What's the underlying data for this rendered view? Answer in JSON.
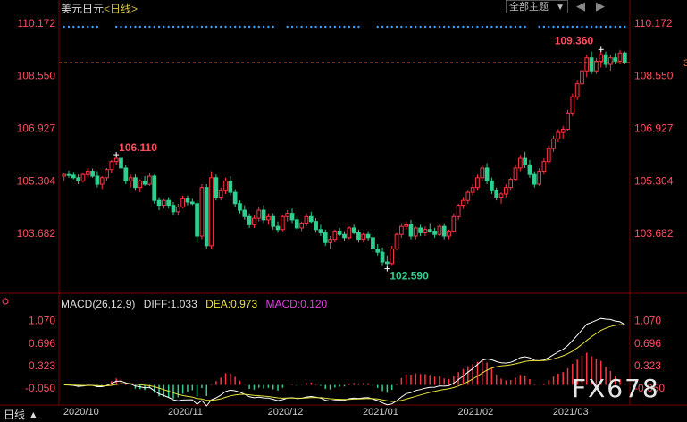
{
  "window": {
    "title": "美元日元",
    "period_label": "<日线>",
    "theme_select": "全部主题",
    "watermark": "FX678",
    "period_button": "日线 ▲"
  },
  "colors": {
    "background": "#000000",
    "up": "#ff3344",
    "down": "#2fcf8f",
    "axis_text": "#ff4d5e",
    "grid": "#7a0000",
    "diff_line": "#ffffff",
    "dea_line": "#e8e23c",
    "dots": "#3aa0ff",
    "last_price_line": "#ff7a45"
  },
  "main_chart": {
    "y_axis_labels": [
      "110.172",
      "108.550",
      "106.927",
      "105.304",
      "103.682"
    ],
    "y_range": [
      102.0,
      110.5
    ],
    "high_annotation": "106.110",
    "low_annotation": "102.590",
    "recent_high_annotation": "109.360",
    "last_price_marker": "3",
    "candles": [
      [
        105.45,
        105.55,
        105.3,
        105.5
      ],
      [
        105.5,
        105.62,
        105.4,
        105.48
      ],
      [
        105.48,
        105.58,
        105.35,
        105.4
      ],
      [
        105.4,
        105.5,
        105.2,
        105.3
      ],
      [
        105.3,
        105.55,
        105.25,
        105.5
      ],
      [
        105.5,
        105.7,
        105.4,
        105.6
      ],
      [
        105.6,
        105.68,
        105.4,
        105.45
      ],
      [
        105.45,
        105.6,
        105.1,
        105.2
      ],
      [
        105.2,
        105.45,
        105.05,
        105.4
      ],
      [
        105.4,
        105.7,
        105.3,
        105.65
      ],
      [
        105.65,
        105.95,
        105.55,
        105.9
      ],
      [
        105.9,
        106.11,
        105.8,
        106.0
      ],
      [
        106.0,
        106.05,
        105.6,
        105.7
      ],
      [
        105.7,
        105.8,
        105.2,
        105.3
      ],
      [
        105.3,
        105.5,
        105.1,
        105.4
      ],
      [
        105.4,
        105.5,
        105.0,
        105.1
      ],
      [
        105.1,
        105.35,
        104.95,
        105.3
      ],
      [
        105.3,
        105.45,
        105.15,
        105.2
      ],
      [
        105.2,
        105.55,
        105.15,
        105.45
      ],
      [
        105.45,
        105.5,
        104.6,
        104.7
      ],
      [
        104.7,
        104.8,
        104.4,
        104.55
      ],
      [
        104.55,
        104.75,
        104.45,
        104.7
      ],
      [
        104.7,
        104.8,
        104.45,
        104.55
      ],
      [
        104.55,
        104.65,
        104.25,
        104.35
      ],
      [
        104.35,
        104.6,
        104.25,
        104.5
      ],
      [
        104.5,
        104.85,
        104.45,
        104.75
      ],
      [
        104.75,
        104.85,
        104.55,
        104.65
      ],
      [
        104.65,
        104.75,
        104.55,
        104.6
      ],
      [
        104.6,
        104.7,
        103.4,
        103.6
      ],
      [
        103.6,
        105.2,
        103.5,
        105.1
      ],
      [
        105.1,
        105.2,
        103.2,
        103.3
      ],
      [
        103.3,
        105.6,
        103.2,
        105.4
      ],
      [
        105.4,
        105.5,
        104.7,
        104.8
      ],
      [
        104.8,
        105.1,
        104.7,
        105.0
      ],
      [
        105.0,
        105.4,
        104.9,
        105.3
      ],
      [
        105.3,
        105.45,
        104.85,
        104.95
      ],
      [
        104.95,
        105.05,
        104.5,
        104.6
      ],
      [
        104.6,
        104.7,
        104.3,
        104.4
      ],
      [
        104.4,
        104.55,
        104.1,
        104.2
      ],
      [
        104.2,
        104.3,
        103.85,
        103.95
      ],
      [
        103.95,
        104.25,
        103.85,
        104.15
      ],
      [
        104.15,
        104.5,
        104.05,
        104.4
      ],
      [
        104.4,
        104.55,
        104.0,
        104.1
      ],
      [
        104.1,
        104.3,
        103.95,
        104.2
      ],
      [
        104.2,
        104.3,
        103.8,
        103.9
      ],
      [
        103.9,
        104.05,
        103.7,
        103.8
      ],
      [
        103.8,
        104.25,
        103.75,
        104.2
      ],
      [
        104.2,
        104.4,
        104.05,
        104.3
      ],
      [
        104.3,
        104.45,
        104.0,
        104.1
      ],
      [
        104.1,
        104.2,
        103.8,
        103.85
      ],
      [
        103.85,
        104.05,
        103.75,
        104.0
      ],
      [
        104.0,
        104.3,
        103.9,
        104.2
      ],
      [
        104.2,
        104.35,
        104.0,
        104.05
      ],
      [
        104.05,
        104.15,
        103.7,
        103.8
      ],
      [
        103.8,
        103.95,
        103.6,
        103.7
      ],
      [
        103.7,
        103.8,
        103.3,
        103.4
      ],
      [
        103.4,
        103.6,
        103.2,
        103.5
      ],
      [
        103.5,
        103.8,
        103.4,
        103.75
      ],
      [
        103.75,
        103.85,
        103.6,
        103.65
      ],
      [
        103.65,
        103.75,
        103.45,
        103.55
      ],
      [
        103.55,
        103.9,
        103.5,
        103.85
      ],
      [
        103.85,
        103.95,
        103.65,
        103.7
      ],
      [
        103.7,
        103.8,
        103.4,
        103.5
      ],
      [
        103.5,
        103.7,
        103.4,
        103.65
      ],
      [
        103.65,
        103.75,
        103.45,
        103.55
      ],
      [
        103.55,
        103.65,
        103.1,
        103.2
      ],
      [
        103.2,
        103.35,
        103.0,
        103.1
      ],
      [
        103.1,
        103.25,
        102.7,
        102.8
      ],
      [
        102.8,
        103.0,
        102.59,
        102.75
      ],
      [
        102.75,
        103.3,
        102.7,
        103.2
      ],
      [
        103.2,
        103.7,
        103.15,
        103.65
      ],
      [
        103.65,
        104.0,
        103.55,
        103.9
      ],
      [
        103.9,
        104.05,
        103.8,
        103.95
      ],
      [
        103.95,
        104.1,
        103.5,
        103.6
      ],
      [
        103.6,
        103.9,
        103.5,
        103.85
      ],
      [
        103.85,
        103.95,
        103.6,
        103.7
      ],
      [
        103.7,
        103.9,
        103.6,
        103.8
      ],
      [
        103.8,
        104.0,
        103.7,
        103.75
      ],
      [
        103.75,
        103.85,
        103.55,
        103.65
      ],
      [
        103.65,
        103.95,
        103.6,
        103.9
      ],
      [
        103.9,
        104.0,
        103.5,
        103.6
      ],
      [
        103.6,
        103.8,
        103.5,
        103.75
      ],
      [
        103.75,
        104.3,
        103.7,
        104.2
      ],
      [
        104.2,
        104.6,
        104.1,
        104.55
      ],
      [
        104.55,
        104.8,
        104.45,
        104.7
      ],
      [
        104.7,
        105.0,
        104.6,
        104.95
      ],
      [
        104.95,
        105.2,
        104.85,
        105.1
      ],
      [
        105.1,
        105.5,
        105.0,
        105.4
      ],
      [
        105.4,
        105.8,
        105.3,
        105.7
      ],
      [
        105.7,
        105.85,
        105.2,
        105.3
      ],
      [
        105.3,
        105.4,
        104.9,
        105.0
      ],
      [
        105.0,
        105.1,
        104.7,
        104.8
      ],
      [
        104.8,
        104.95,
        104.6,
        104.9
      ],
      [
        104.9,
        105.2,
        104.8,
        105.1
      ],
      [
        105.1,
        105.4,
        105.0,
        105.35
      ],
      [
        105.35,
        105.8,
        105.3,
        105.7
      ],
      [
        105.7,
        106.1,
        105.6,
        106.0
      ],
      [
        106.0,
        106.2,
        105.7,
        105.8
      ],
      [
        105.8,
        105.95,
        105.4,
        105.5
      ],
      [
        105.5,
        105.6,
        105.1,
        105.2
      ],
      [
        105.2,
        105.7,
        105.15,
        105.6
      ],
      [
        105.6,
        106.0,
        105.5,
        105.9
      ],
      [
        105.9,
        106.4,
        105.85,
        106.3
      ],
      [
        106.3,
        106.7,
        106.2,
        106.6
      ],
      [
        106.6,
        106.9,
        106.5,
        106.8
      ],
      [
        106.8,
        107.0,
        106.6,
        106.9
      ],
      [
        106.9,
        107.5,
        106.85,
        107.4
      ],
      [
        107.4,
        108.0,
        107.3,
        107.9
      ],
      [
        107.9,
        108.4,
        107.8,
        108.3
      ],
      [
        108.3,
        108.8,
        108.2,
        108.7
      ],
      [
        108.7,
        109.2,
        108.5,
        109.1
      ],
      [
        109.1,
        109.3,
        108.6,
        108.7
      ],
      [
        108.7,
        109.1,
        108.6,
        109.0
      ],
      [
        109.0,
        109.36,
        108.8,
        109.2
      ],
      [
        109.2,
        109.3,
        108.8,
        108.9
      ],
      [
        108.9,
        109.2,
        108.7,
        109.1
      ],
      [
        109.1,
        109.25,
        108.9,
        109.0
      ],
      [
        109.0,
        109.35,
        108.9,
        109.25
      ],
      [
        109.25,
        109.3,
        108.9,
        108.95
      ]
    ]
  },
  "macd": {
    "params": "MACD(26,12,9)",
    "diff_label": "DIFF:1.033",
    "dea_label": "DEA:0.973",
    "macd_label": "MACD:0.120",
    "y_axis_labels": [
      "1.070",
      "0.696",
      "0.323",
      "-0.050"
    ],
    "y_range": [
      -0.32,
      1.2
    ]
  },
  "x_axis": {
    "labels": [
      {
        "text": "2020/10",
        "index": 4
      },
      {
        "text": "2020/11",
        "index": 26
      },
      {
        "text": "2020/12",
        "index": 47
      },
      {
        "text": "2021/01",
        "index": 67
      },
      {
        "text": "2021/02",
        "index": 87
      },
      {
        "text": "2021/03",
        "index": 107
      }
    ]
  }
}
